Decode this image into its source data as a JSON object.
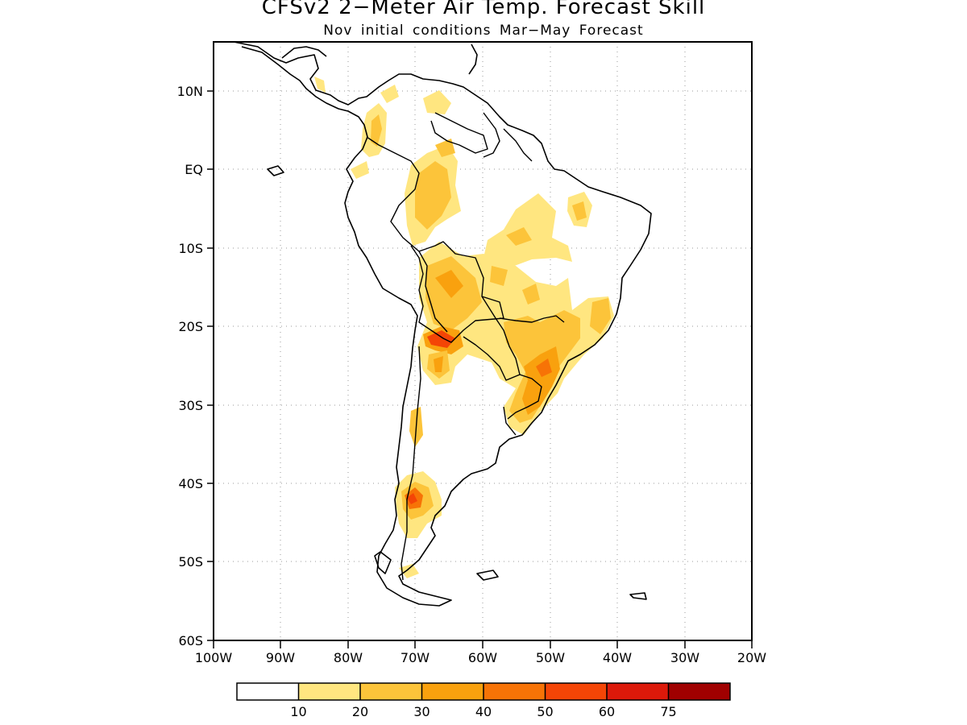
{
  "title": "CFSv2 2−Meter Air Temp. Forecast Skill",
  "subtitle": "Nov initial conditions   Mar−May Forecast",
  "map": {
    "lon_ticks": [
      "100W",
      "90W",
      "80W",
      "70W",
      "60W",
      "50W",
      "40W",
      "30W",
      "20W"
    ],
    "lat_ticks": [
      "10N",
      "EQ",
      "10S",
      "20S",
      "30S",
      "40S",
      "50S",
      "60S"
    ],
    "lon_range": [
      -100,
      -20
    ],
    "lat_range": [
      -60,
      15
    ],
    "gridlines": "dotted",
    "region": "South America"
  },
  "colors": {
    "c0": "#ffffff",
    "c1": "#ffe680",
    "c2": "#fcc43a",
    "c3": "#f9a10e",
    "c4": "#f77306",
    "c5": "#f44506",
    "c6": "#dc190a",
    "c7": "#a00000"
  },
  "legend": {
    "labels": [
      "10",
      "20",
      "30",
      "40",
      "50",
      "60",
      "75"
    ],
    "colors": [
      "#ffffff",
      "#ffe680",
      "#fcc43a",
      "#f9a10e",
      "#f77306",
      "#f44506",
      "#dc190a",
      "#a00000"
    ]
  }
}
